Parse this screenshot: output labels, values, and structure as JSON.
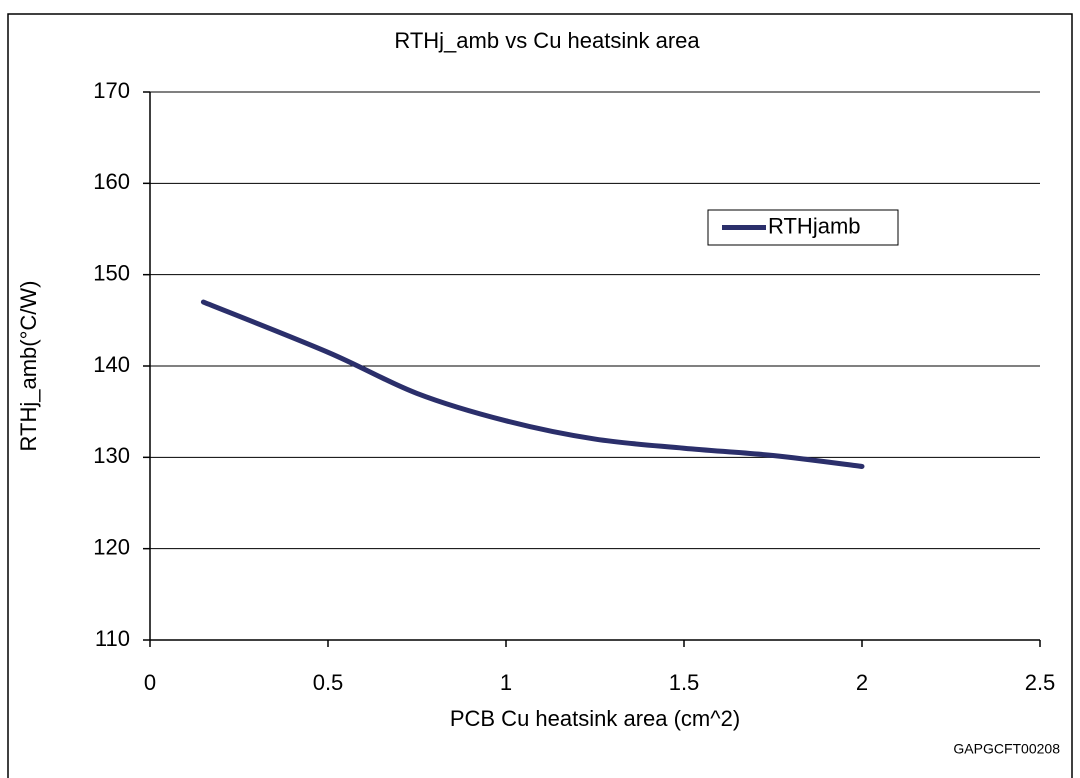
{
  "chart_data": {
    "type": "line",
    "title": "RTHj_amb vs Cu heatsink area",
    "x_label": "PCB Cu heatsink area (cm^2)",
    "y_label": "RTHj_amb(°C/W)",
    "footnote": "GAPGCFT00208",
    "x": [
      0.15,
      0.5,
      0.75,
      1,
      1.25,
      1.5,
      1.75,
      2
    ],
    "series": [
      {
        "name": "RTHjamb",
        "color": "#2b2f6b",
        "values": [
          147,
          141.5,
          137,
          134,
          132,
          131,
          130.2,
          129
        ]
      }
    ],
    "xlim": [
      0,
      2.5
    ],
    "xticks": [
      0,
      0.5,
      1,
      1.5,
      2,
      2.5
    ],
    "ylim": [
      110,
      170
    ],
    "yticks": [
      110,
      120,
      130,
      140,
      150,
      160,
      170
    ],
    "grid": true,
    "legend": "upper right"
  }
}
